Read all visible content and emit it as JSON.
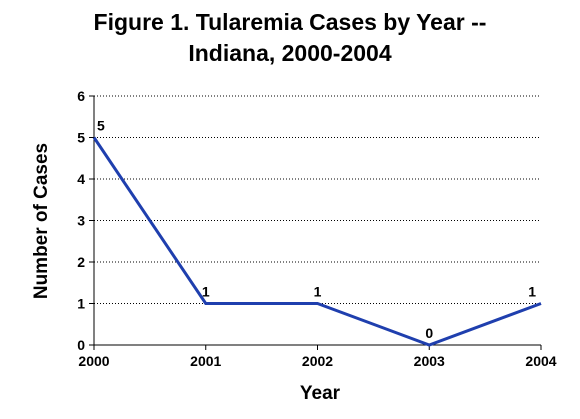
{
  "chart_data": {
    "type": "line",
    "title_lines": [
      "Figure 1. Tularemia Cases by Year --",
      "Indiana, 2000-2004"
    ],
    "xlabel": "Year",
    "ylabel": "Number of Cases",
    "x": [
      "2000",
      "2001",
      "2002",
      "2003",
      "2004"
    ],
    "y_ticks": [
      "0",
      "1",
      "2",
      "3",
      "4",
      "5",
      "6"
    ],
    "ylim": [
      0,
      6
    ],
    "series": [
      {
        "values": [
          5,
          1,
          1,
          0,
          1
        ],
        "color": "#1f3fae"
      }
    ],
    "data_labels": [
      "5",
      "1",
      "1",
      "0",
      "1"
    ],
    "grid": "horizontal dotted",
    "legend": "none"
  }
}
